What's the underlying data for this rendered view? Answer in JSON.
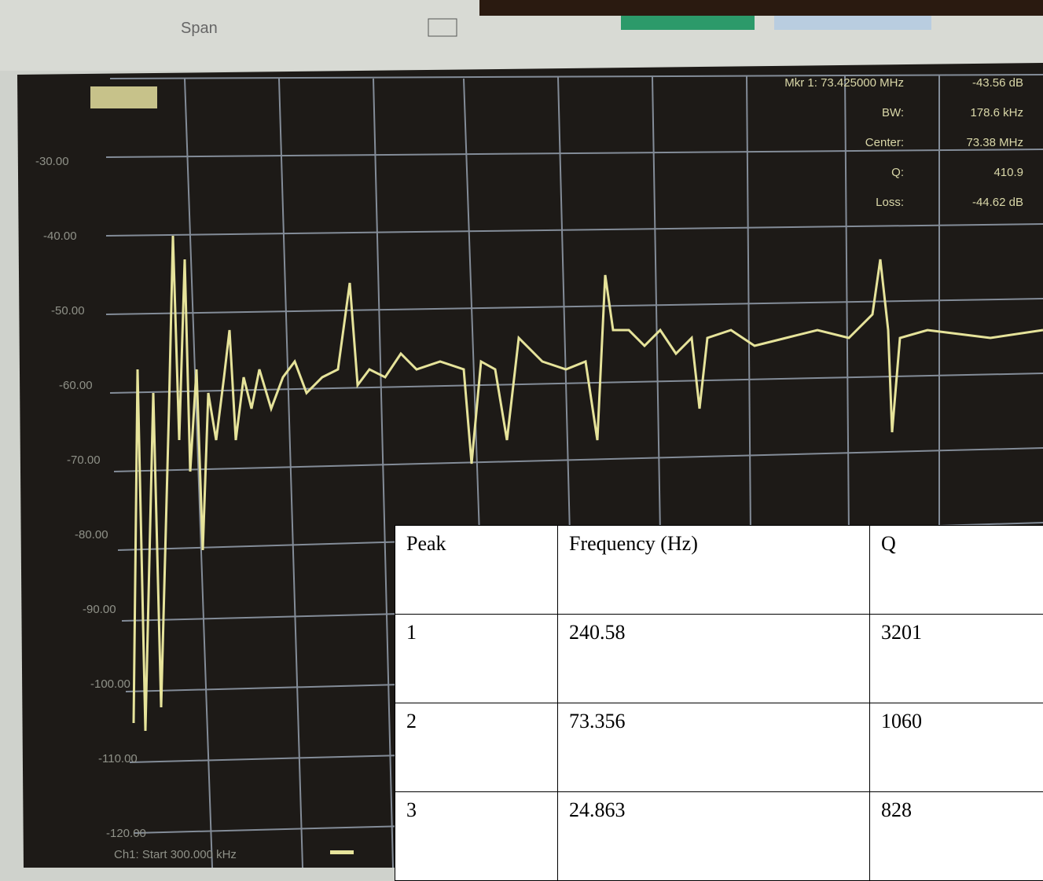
{
  "screen": {
    "span_label": "Span",
    "marker_lines": [
      "Mkr 1: 73.425000 MHz",
      "BW:",
      "Center:",
      "Q:",
      "Loss:"
    ],
    "marker_values": [
      "-43.56 dB",
      "178.6 kHz",
      "73.38 MHz",
      "410.9",
      "-44.62 dB"
    ],
    "y_axis_labels": [
      "-30.00",
      "-40.00",
      "-50.00",
      "-60.00",
      "-70.00",
      "-80.00",
      "-90.00",
      "-100.00",
      "-110.00",
      "-120.00"
    ],
    "footer": "Ch1: Start 300.000 kHz"
  },
  "table": {
    "header": [
      "Peak",
      "Frequency (Hz)",
      "Q"
    ],
    "rows": [
      [
        "1",
        "240.58",
        "3201"
      ],
      [
        "2",
        "73.356",
        "1060"
      ],
      [
        "3",
        "24.863",
        "828"
      ]
    ]
  }
}
